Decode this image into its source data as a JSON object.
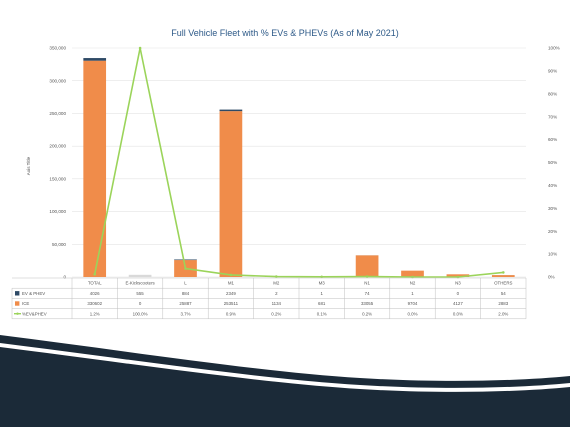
{
  "chart_data": {
    "type": "bar",
    "title": "Full Vehicle Fleet with % EVs & PHEVs (As of May 2021)",
    "ylabel": "Axis Title",
    "ylim": [
      0,
      350000
    ],
    "y2lim": [
      0,
      100
    ],
    "yticks": [
      "0",
      "50,000",
      "100,000",
      "150,000",
      "200,000",
      "250,000",
      "300,000",
      "350,000"
    ],
    "y2ticks": [
      "0%",
      "10%",
      "20%",
      "30%",
      "40%",
      "50%",
      "60%",
      "70%",
      "80%",
      "90%",
      "100%"
    ],
    "categories": [
      "TOTAL",
      "E-Kickscooters",
      "L",
      "M1",
      "M2",
      "M3",
      "N1",
      "N2",
      "N3",
      "OTHERS"
    ],
    "stacked": true,
    "series": [
      {
        "name": "EV & PHEV",
        "color": "#2e4a66",
        "marker": "square",
        "values": [
          4026,
          555,
          884,
          2349,
          2,
          1,
          74,
          1,
          0,
          54
        ],
        "labels": [
          "4026",
          "555",
          "884",
          "2349",
          "2",
          "1",
          "74",
          "1",
          "0",
          "54"
        ]
      },
      {
        "name": "ICE",
        "color": "#f08c4a",
        "marker": "square",
        "values": [
          330602,
          0,
          25887,
          253511,
          1134,
          681,
          33055,
          9704,
          4127,
          2883
        ],
        "labels": [
          "330602",
          "0",
          "25887",
          "253511",
          "1134",
          "681",
          "33055",
          "9704",
          "4127",
          "2883"
        ]
      },
      {
        "name": "%EV&PHEV",
        "color": "#9bd45a",
        "marker": "line",
        "axis": "right",
        "values": [
          1.2,
          100.0,
          3.7,
          0.9,
          0.2,
          0.1,
          0.2,
          0.0,
          0.0,
          2.0
        ],
        "labels": [
          "1.2%",
          "100.0%",
          "3.7%",
          "0.9%",
          "0.2%",
          "0.1%",
          "0.2%",
          "0.0%",
          "0.0%",
          "2.0%"
        ]
      }
    ]
  },
  "colors": {
    "band_dark": "#1b2a38",
    "band_light": "#ffffff",
    "grid": "#e3e3e3",
    "axis_text": "#555555",
    "title": "#2e5a88",
    "e_kick_bar": "#d9d9d9"
  }
}
